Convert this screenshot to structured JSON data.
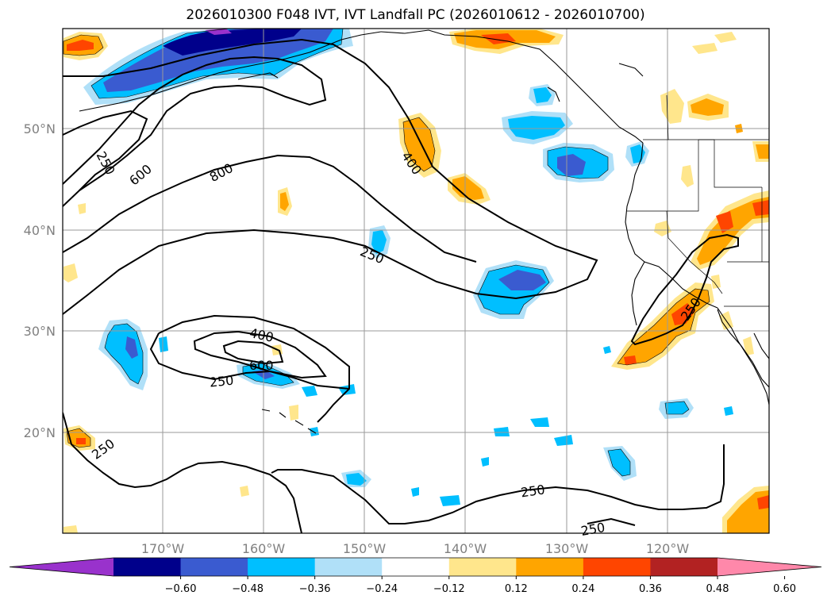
{
  "title": "2026010300 F048 IVT, IVT Landfall PC (2026010612 - 2026010700)",
  "latitude_labels": [
    "50°N",
    "40°N",
    "30°N",
    "20°N"
  ],
  "longitude_labels": [
    "170°W",
    "160°W",
    "150°W",
    "140°W",
    "130°W",
    "120°W"
  ],
  "contour_labels": [
    "250",
    "600",
    "800",
    "400",
    "250",
    "400",
    "600",
    "250",
    "250",
    "250",
    "250",
    "250"
  ],
  "colorbar": {
    "tick_labels": [
      "−0.60",
      "−0.48",
      "−0.36",
      "−0.24",
      "−0.12",
      "0.12",
      "0.24",
      "0.36",
      "0.48",
      "0.60"
    ],
    "colors": [
      "#9932cc",
      "#00008b",
      "#3a5bd0",
      "#00bfff",
      "#b0e0f8",
      "#ffffff",
      "#ffe68c",
      "#ffa500",
      "#ff4500",
      "#b22222",
      "#ff88aa"
    ]
  },
  "shading_colors": {
    "neg_light": "#b0e0f8",
    "neg_mid": "#00bfff",
    "neg_strong": "#3a5bd0",
    "neg_darkest": "#00008b",
    "neg_extreme": "#9932cc",
    "pos_light": "#ffe68c",
    "pos_mid": "#ffa500",
    "pos_strong": "#ff4500"
  }
}
